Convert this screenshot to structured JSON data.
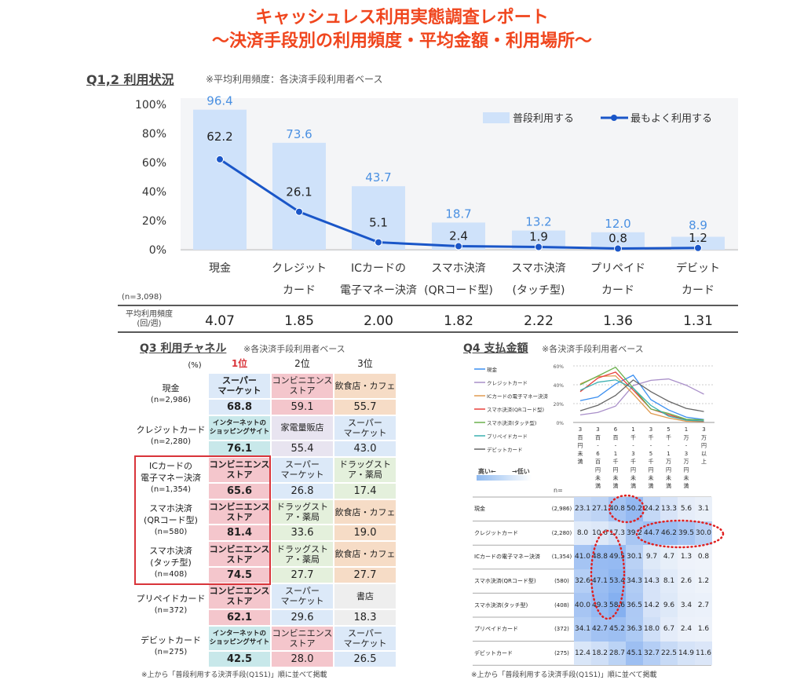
{
  "header": {
    "title1": "キャッシュレス利用実態調査レポート",
    "title2": "～決済手段別の利用頻度・平均金額・利用場所～"
  },
  "q12": {
    "section": "Q1,2 利用状況",
    "note": "※平均利用頻度：各決済手段利用者ベース",
    "n_label": "(n=3,098)",
    "avg_label1": "平均利用頻度",
    "avg_label2": "(回/週)"
  },
  "chart_data": [
    {
      "type": "bar+line",
      "categories": [
        [
          "現金",
          ""
        ],
        [
          "クレジット",
          "カード"
        ],
        [
          "ICカードの",
          "電子マネー決済"
        ],
        [
          "スマホ決済",
          "(QRコード型)"
        ],
        [
          "スマホ決済",
          "(タッチ型)"
        ],
        [
          "プリペイド",
          "カード"
        ],
        [
          "デビット",
          "カード"
        ]
      ],
      "series": [
        {
          "name": "普段利用する",
          "type": "bar",
          "values": [
            96.4,
            73.6,
            43.7,
            18.7,
            13.2,
            12.0,
            8.9
          ],
          "color": "#cfe2fa",
          "label_color": "#4a90e2"
        },
        {
          "name": "最もよく利用する",
          "type": "line",
          "values": [
            62.2,
            26.1,
            5.1,
            2.4,
            1.9,
            0.8,
            1.2
          ],
          "color": "#1a56c8"
        }
      ],
      "yticks": [
        "0%",
        "20%",
        "40%",
        "60%",
        "80%",
        "100%"
      ],
      "ylim": [
        0,
        100
      ],
      "legend": "top-right",
      "avg_frequency": [
        "4.07",
        "1.85",
        "2.00",
        "1.82",
        "2.22",
        "1.36",
        "1.31"
      ]
    },
    {
      "type": "line",
      "categories": [
        "3百円未満",
        "3百-6百円未満",
        "6百-1千円未満",
        "1千-3千円未満",
        "3千-5千円未満",
        "5千-1万円未満",
        "1万-3万円未満",
        "3万円以上"
      ],
      "yticks": [
        "0%",
        "20%",
        "40%",
        "60%"
      ],
      "ylim": [
        0,
        60
      ],
      "legend": "left",
      "series": [
        {
          "name": "現金",
          "n": "(2,986)",
          "color": "#3b8ff0",
          "values": [
            23.1,
            27.1,
            40.8,
            50.2,
            24.2,
            13.3,
            5.6,
            3.1
          ]
        },
        {
          "name": "クレジットカード",
          "n": "(2,280)",
          "color": "#a98fc9",
          "values": [
            8.0,
            10.6,
            17.3,
            39.2,
            44.7,
            46.2,
            39.5,
            30.0
          ]
        },
        {
          "name": "ICカードの電子マネー決済",
          "n": "(1,354)",
          "color": "#e09a50",
          "values": [
            41.0,
            48.8,
            49.5,
            30.1,
            9.7,
            4.7,
            1.3,
            0.8
          ]
        },
        {
          "name": "スマホ決済(QRコード型)",
          "n": "(580)",
          "color": "#e8403c",
          "values": [
            32.6,
            47.1,
            53.4,
            34.3,
            14.3,
            8.1,
            2.6,
            1.2
          ]
        },
        {
          "name": "スマホ決済(タッチ型)",
          "n": "(408)",
          "color": "#6ab04c",
          "values": [
            40.0,
            49.3,
            58.6,
            36.5,
            14.2,
            9.6,
            3.4,
            2.7
          ]
        },
        {
          "name": "プリペイドカード",
          "n": "(372)",
          "color": "#3bb0b0",
          "values": [
            34.1,
            42.7,
            45.2,
            36.3,
            18.0,
            6.7,
            2.4,
            1.6
          ]
        },
        {
          "name": "デビットカード",
          "n": "(275)",
          "color": "#666666",
          "values": [
            12.4,
            18.2,
            28.7,
            45.1,
            32.7,
            22.5,
            14.9,
            11.6
          ]
        }
      ]
    }
  ],
  "q3": {
    "section": "Q3 利用チャネル",
    "note": "※各決済手段利用者ベース",
    "unit": "(%)",
    "ranks": [
      "1位",
      "2位",
      "3位"
    ],
    "rows": [
      {
        "name": "現金",
        "n": "(n=2,986)",
        "cells": [
          {
            "l": "スーパー\nマーケット",
            "v": "68.8",
            "c": "#dce9f8"
          },
          {
            "l": "コンビニエンス\nストア",
            "v": "59.1",
            "c": "#f4c6cc"
          },
          {
            "l": "飲食店・カフェ",
            "v": "55.7",
            "c": "#f6dcc6"
          }
        ]
      },
      {
        "name": "クレジットカード",
        "n": "(n=2,280)",
        "cells": [
          {
            "l": "インターネットの\nショッピングサイト",
            "v": "76.1",
            "c": "#c8e8ea"
          },
          {
            "l": "家電量販店",
            "v": "55.4",
            "c": "#e8e4f0"
          },
          {
            "l": "スーパー\nマーケット",
            "v": "43.0",
            "c": "#dce9f8"
          }
        ]
      },
      {
        "name": "ICカードの\n電子マネー決済",
        "n": "(n=1,354)",
        "cells": [
          {
            "l": "コンビニエンス\nストア",
            "v": "65.6",
            "c": "#f4c6cc"
          },
          {
            "l": "スーパー\nマーケット",
            "v": "26.8",
            "c": "#dce9f8"
          },
          {
            "l": "ドラッグスト\nア・薬局",
            "v": "17.4",
            "c": "#e4f0dc"
          }
        ]
      },
      {
        "name": "スマホ決済\n(QRコード型)",
        "n": "(n=580)",
        "cells": [
          {
            "l": "コンビニエンス\nストア",
            "v": "81.4",
            "c": "#f4c6cc"
          },
          {
            "l": "ドラッグスト\nア・薬局",
            "v": "33.6",
            "c": "#e4f0dc"
          },
          {
            "l": "飲食店・カフェ",
            "v": "19.0",
            "c": "#f6dcc6"
          }
        ]
      },
      {
        "name": "スマホ決済\n(タッチ型)",
        "n": "(n=408)",
        "cells": [
          {
            "l": "コンビニエンス\nストア",
            "v": "74.5",
            "c": "#f4c6cc"
          },
          {
            "l": "ドラッグスト\nア・薬局",
            "v": "27.7",
            "c": "#e4f0dc"
          },
          {
            "l": "飲食店・カフェ",
            "v": "27.7",
            "c": "#f6dcc6"
          }
        ]
      },
      {
        "name": "プリペイドカード",
        "n": "(n=372)",
        "cells": [
          {
            "l": "コンビニエンス\nストア",
            "v": "62.1",
            "c": "#f4c6cc"
          },
          {
            "l": "スーパー\nマーケット",
            "v": "29.6",
            "c": "#dce9f8"
          },
          {
            "l": "書店",
            "v": "18.3",
            "c": "#eeeeee"
          }
        ]
      },
      {
        "name": "デビットカード",
        "n": "(n=275)",
        "cells": [
          {
            "l": "インターネットの\nショッピングサイト",
            "v": "42.5",
            "c": "#c8e8ea"
          },
          {
            "l": "コンビニエンス\nストア",
            "v": "28.0",
            "c": "#f4c6cc"
          },
          {
            "l": "スーパー\nマーケット",
            "v": "26.5",
            "c": "#dce9f8"
          }
        ]
      }
    ],
    "footnote": "※上から「普段利用する決済手段(Q1S1)」順に並べて掲載"
  },
  "q4": {
    "section": "Q4 支払金額",
    "note": "※各決済手段利用者ベース",
    "scale_high": "高い←",
    "scale_low": "→低い",
    "n_label": "n=",
    "footnote": "※上から「普段利用する決済手段(Q1S1)」順に並べて掲載"
  },
  "colors": {
    "title": "#f0461e",
    "highlight": "#d9343a"
  }
}
